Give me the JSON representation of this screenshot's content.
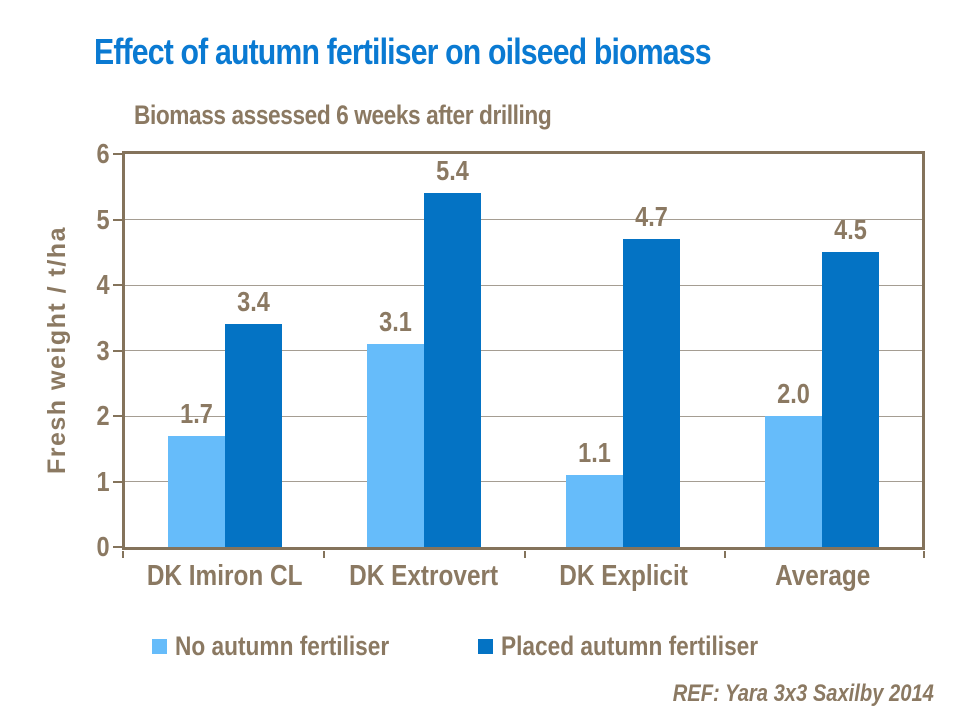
{
  "page": {
    "title": "Effect of autumn fertiliser on oilseed biomass",
    "ref_note": "REF:  Yara 3x3 Saxilby 2014"
  },
  "colors": {
    "title_blue": "#0a7ad2",
    "text_brown": "#8b7962",
    "axis_border_brown": "#84735b",
    "gridline_gray": "#a59d92",
    "series_light_blue": "#66bcfa",
    "series_dark_blue": "#0473c4"
  },
  "chart_data": {
    "type": "bar",
    "title": "Biomass assessed 6 weeks after drilling",
    "xlabel": "",
    "ylabel": "Fresh weight / t/ha",
    "ylim": [
      0,
      6
    ],
    "ytick_interval": 1,
    "yticks": [
      0,
      1,
      2,
      3,
      4,
      5,
      6
    ],
    "grid": true,
    "legend_position": "bottom",
    "value_labels": true,
    "value_label_format": "one_decimal",
    "categories": [
      "DK Imiron CL",
      "DK Extrovert",
      "DK Explicit",
      "Average"
    ],
    "series": [
      {
        "name": "No autumn fertiliser",
        "color": "#66bcfa",
        "values": [
          1.7,
          3.1,
          1.1,
          2.0
        ]
      },
      {
        "name": "Placed autumn fertiliser",
        "color": "#0473c4",
        "values": [
          3.4,
          5.4,
          4.7,
          4.5
        ]
      }
    ]
  }
}
